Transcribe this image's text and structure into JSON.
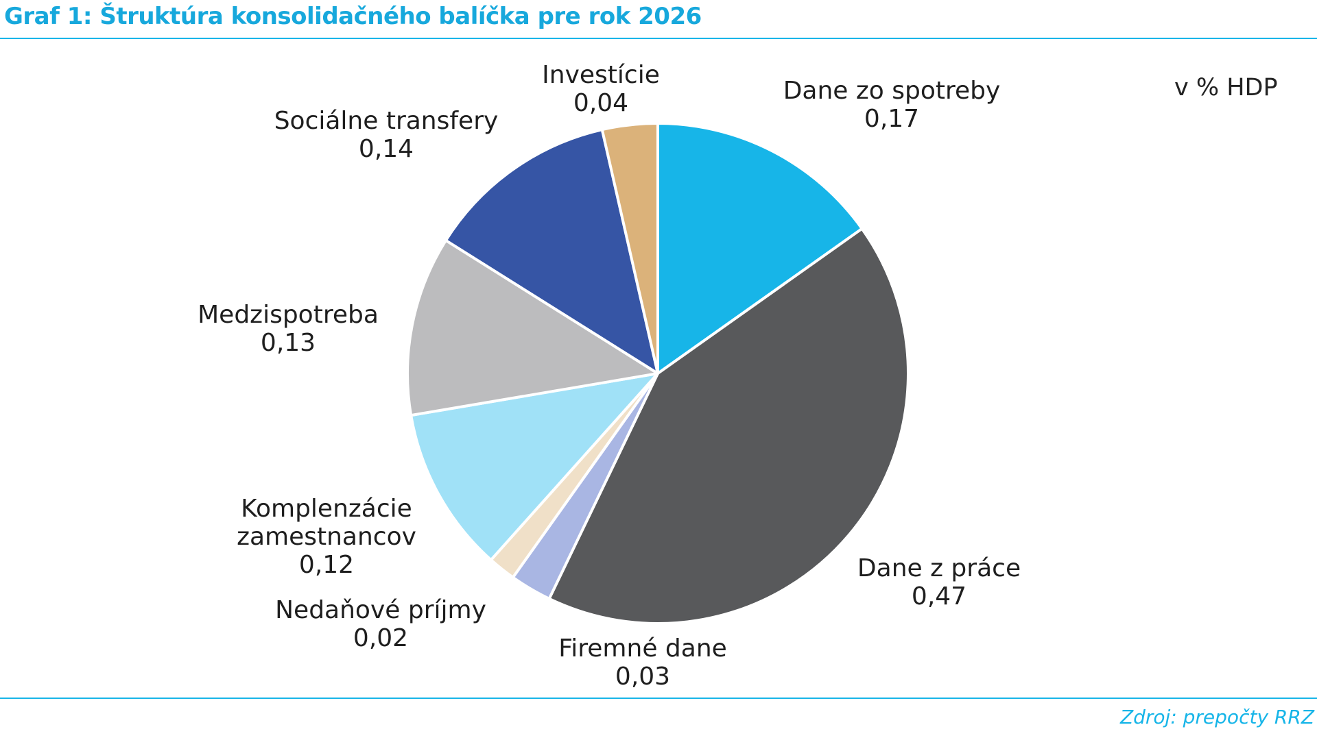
{
  "chart_data": {
    "type": "pie",
    "title": "Graf 1: Štruktúra konsolidačného balíčka pre rok 2026",
    "unit_label": "v % HDP",
    "source": "Zdroj: prepočty RRZ",
    "categories": [
      "Dane zo spotreby",
      "Dane z práce",
      "Firemné dane",
      "Nedaňové príjmy",
      "Komplenzácie zamestnancov",
      "Medzispotreba",
      "Sociálne transfery",
      "Investície"
    ],
    "values": [
      0.17,
      0.47,
      0.03,
      0.02,
      0.12,
      0.13,
      0.14,
      0.04
    ],
    "value_labels": [
      "0,17",
      "0,47",
      "0,03",
      "0,02",
      "0,12",
      "0,13",
      "0,14",
      "0,04"
    ],
    "colors": [
      "#17b5e8",
      "#58595b",
      "#a9b6e3",
      "#f0e0c8",
      "#a0e1f7",
      "#bcbcbe",
      "#3655a5",
      "#dbb27a"
    ]
  }
}
